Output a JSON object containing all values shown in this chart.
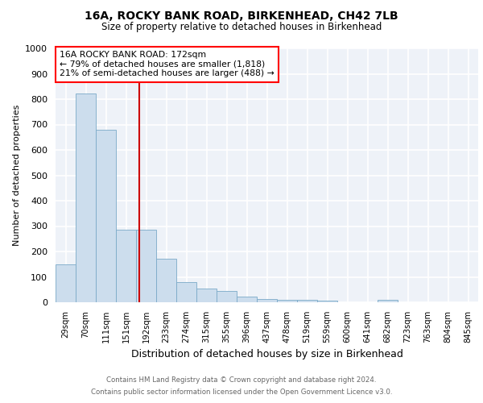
{
  "title1": "16A, ROCKY BANK ROAD, BIRKENHEAD, CH42 7LB",
  "title2": "Size of property relative to detached houses in Birkenhead",
  "xlabel": "Distribution of detached houses by size in Birkenhead",
  "ylabel": "Number of detached properties",
  "categories": [
    "29sqm",
    "70sqm",
    "111sqm",
    "151sqm",
    "192sqm",
    "233sqm",
    "274sqm",
    "315sqm",
    "355sqm",
    "396sqm",
    "437sqm",
    "478sqm",
    "519sqm",
    "559sqm",
    "600sqm",
    "641sqm",
    "682sqm",
    "723sqm",
    "763sqm",
    "804sqm",
    "845sqm"
  ],
  "values": [
    148,
    822,
    678,
    285,
    285,
    172,
    78,
    55,
    44,
    22,
    14,
    10,
    8,
    7,
    0,
    0,
    10,
    0,
    0,
    0,
    0
  ],
  "bar_color": "#ccdded",
  "bar_edge_color": "#7aaac8",
  "annotation_text_line1": "16A ROCKY BANK ROAD: 172sqm",
  "annotation_text_line2": "← 79% of detached houses are smaller (1,818)",
  "annotation_text_line3": "21% of semi-detached houses are larger (488) →",
  "vline_color": "#cc0000",
  "vline_x": 3.65,
  "ylim": [
    0,
    1000
  ],
  "yticks": [
    0,
    100,
    200,
    300,
    400,
    500,
    600,
    700,
    800,
    900,
    1000
  ],
  "footnote1": "Contains HM Land Registry data © Crown copyright and database right 2024.",
  "footnote2": "Contains public sector information licensed under the Open Government Licence v3.0.",
  "background_color": "#ffffff",
  "plot_bg_color": "#eef2f8"
}
